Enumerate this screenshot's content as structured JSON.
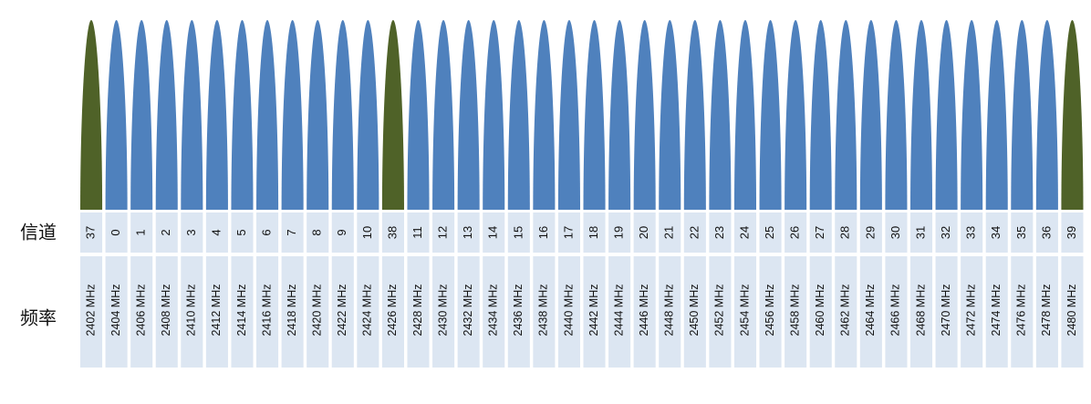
{
  "row_labels": {
    "channel": "信道",
    "frequency": "频率"
  },
  "channels": [
    {
      "number": "37",
      "frequency": "2402 MHz",
      "color": "#4f6228"
    },
    {
      "number": "0",
      "frequency": "2404 MHz",
      "color": "#4f81bd"
    },
    {
      "number": "1",
      "frequency": "2406 MHz",
      "color": "#4f81bd"
    },
    {
      "number": "2",
      "frequency": "2408 MHz",
      "color": "#4f81bd"
    },
    {
      "number": "3",
      "frequency": "2410 MHz",
      "color": "#4f81bd"
    },
    {
      "number": "4",
      "frequency": "2412 MHz",
      "color": "#4f81bd"
    },
    {
      "number": "5",
      "frequency": "2414 MHz",
      "color": "#4f81bd"
    },
    {
      "number": "6",
      "frequency": "2416 MHz",
      "color": "#4f81bd"
    },
    {
      "number": "7",
      "frequency": "2418 MHz",
      "color": "#4f81bd"
    },
    {
      "number": "8",
      "frequency": "2420 MHz",
      "color": "#4f81bd"
    },
    {
      "number": "9",
      "frequency": "2422 MHz",
      "color": "#4f81bd"
    },
    {
      "number": "10",
      "frequency": "2424 MHz",
      "color": "#4f81bd"
    },
    {
      "number": "38",
      "frequency": "2426 MHz",
      "color": "#4f6228"
    },
    {
      "number": "11",
      "frequency": "2428 MHz",
      "color": "#4f81bd"
    },
    {
      "number": "12",
      "frequency": "2430 MHz",
      "color": "#4f81bd"
    },
    {
      "number": "13",
      "frequency": "2432 MHz",
      "color": "#4f81bd"
    },
    {
      "number": "14",
      "frequency": "2434 MHz",
      "color": "#4f81bd"
    },
    {
      "number": "15",
      "frequency": "2436 MHz",
      "color": "#4f81bd"
    },
    {
      "number": "16",
      "frequency": "2438 MHz",
      "color": "#4f81bd"
    },
    {
      "number": "17",
      "frequency": "2440 MHz",
      "color": "#4f81bd"
    },
    {
      "number": "18",
      "frequency": "2442 MHz",
      "color": "#4f81bd"
    },
    {
      "number": "19",
      "frequency": "2444 MHz",
      "color": "#4f81bd"
    },
    {
      "number": "20",
      "frequency": "2446 MHz",
      "color": "#4f81bd"
    },
    {
      "number": "21",
      "frequency": "2448 MHz",
      "color": "#4f81bd"
    },
    {
      "number": "22",
      "frequency": "2450 MHz",
      "color": "#4f81bd"
    },
    {
      "number": "23",
      "frequency": "2452 MHz",
      "color": "#4f81bd"
    },
    {
      "number": "24",
      "frequency": "2454 MHz",
      "color": "#4f81bd"
    },
    {
      "number": "25",
      "frequency": "2456 MHz",
      "color": "#4f81bd"
    },
    {
      "number": "26",
      "frequency": "2458 MHz",
      "color": "#4f81bd"
    },
    {
      "number": "27",
      "frequency": "2460 MHz",
      "color": "#4f81bd"
    },
    {
      "number": "28",
      "frequency": "2462 MHz",
      "color": "#4f81bd"
    },
    {
      "number": "29",
      "frequency": "2464 MHz",
      "color": "#4f81bd"
    },
    {
      "number": "30",
      "frequency": "2466 MHz",
      "color": "#4f81bd"
    },
    {
      "number": "31",
      "frequency": "2468 MHz",
      "color": "#4f81bd"
    },
    {
      "number": "32",
      "frequency": "2470 MHz",
      "color": "#4f81bd"
    },
    {
      "number": "33",
      "frequency": "2472 MHz",
      "color": "#4f81bd"
    },
    {
      "number": "34",
      "frequency": "2474 MHz",
      "color": "#4f81bd"
    },
    {
      "number": "35",
      "frequency": "2476 MHz",
      "color": "#4f81bd"
    },
    {
      "number": "36",
      "frequency": "2478 MHz",
      "color": "#4f81bd"
    },
    {
      "number": "39",
      "frequency": "2480 MHz",
      "color": "#4f6228"
    }
  ]
}
